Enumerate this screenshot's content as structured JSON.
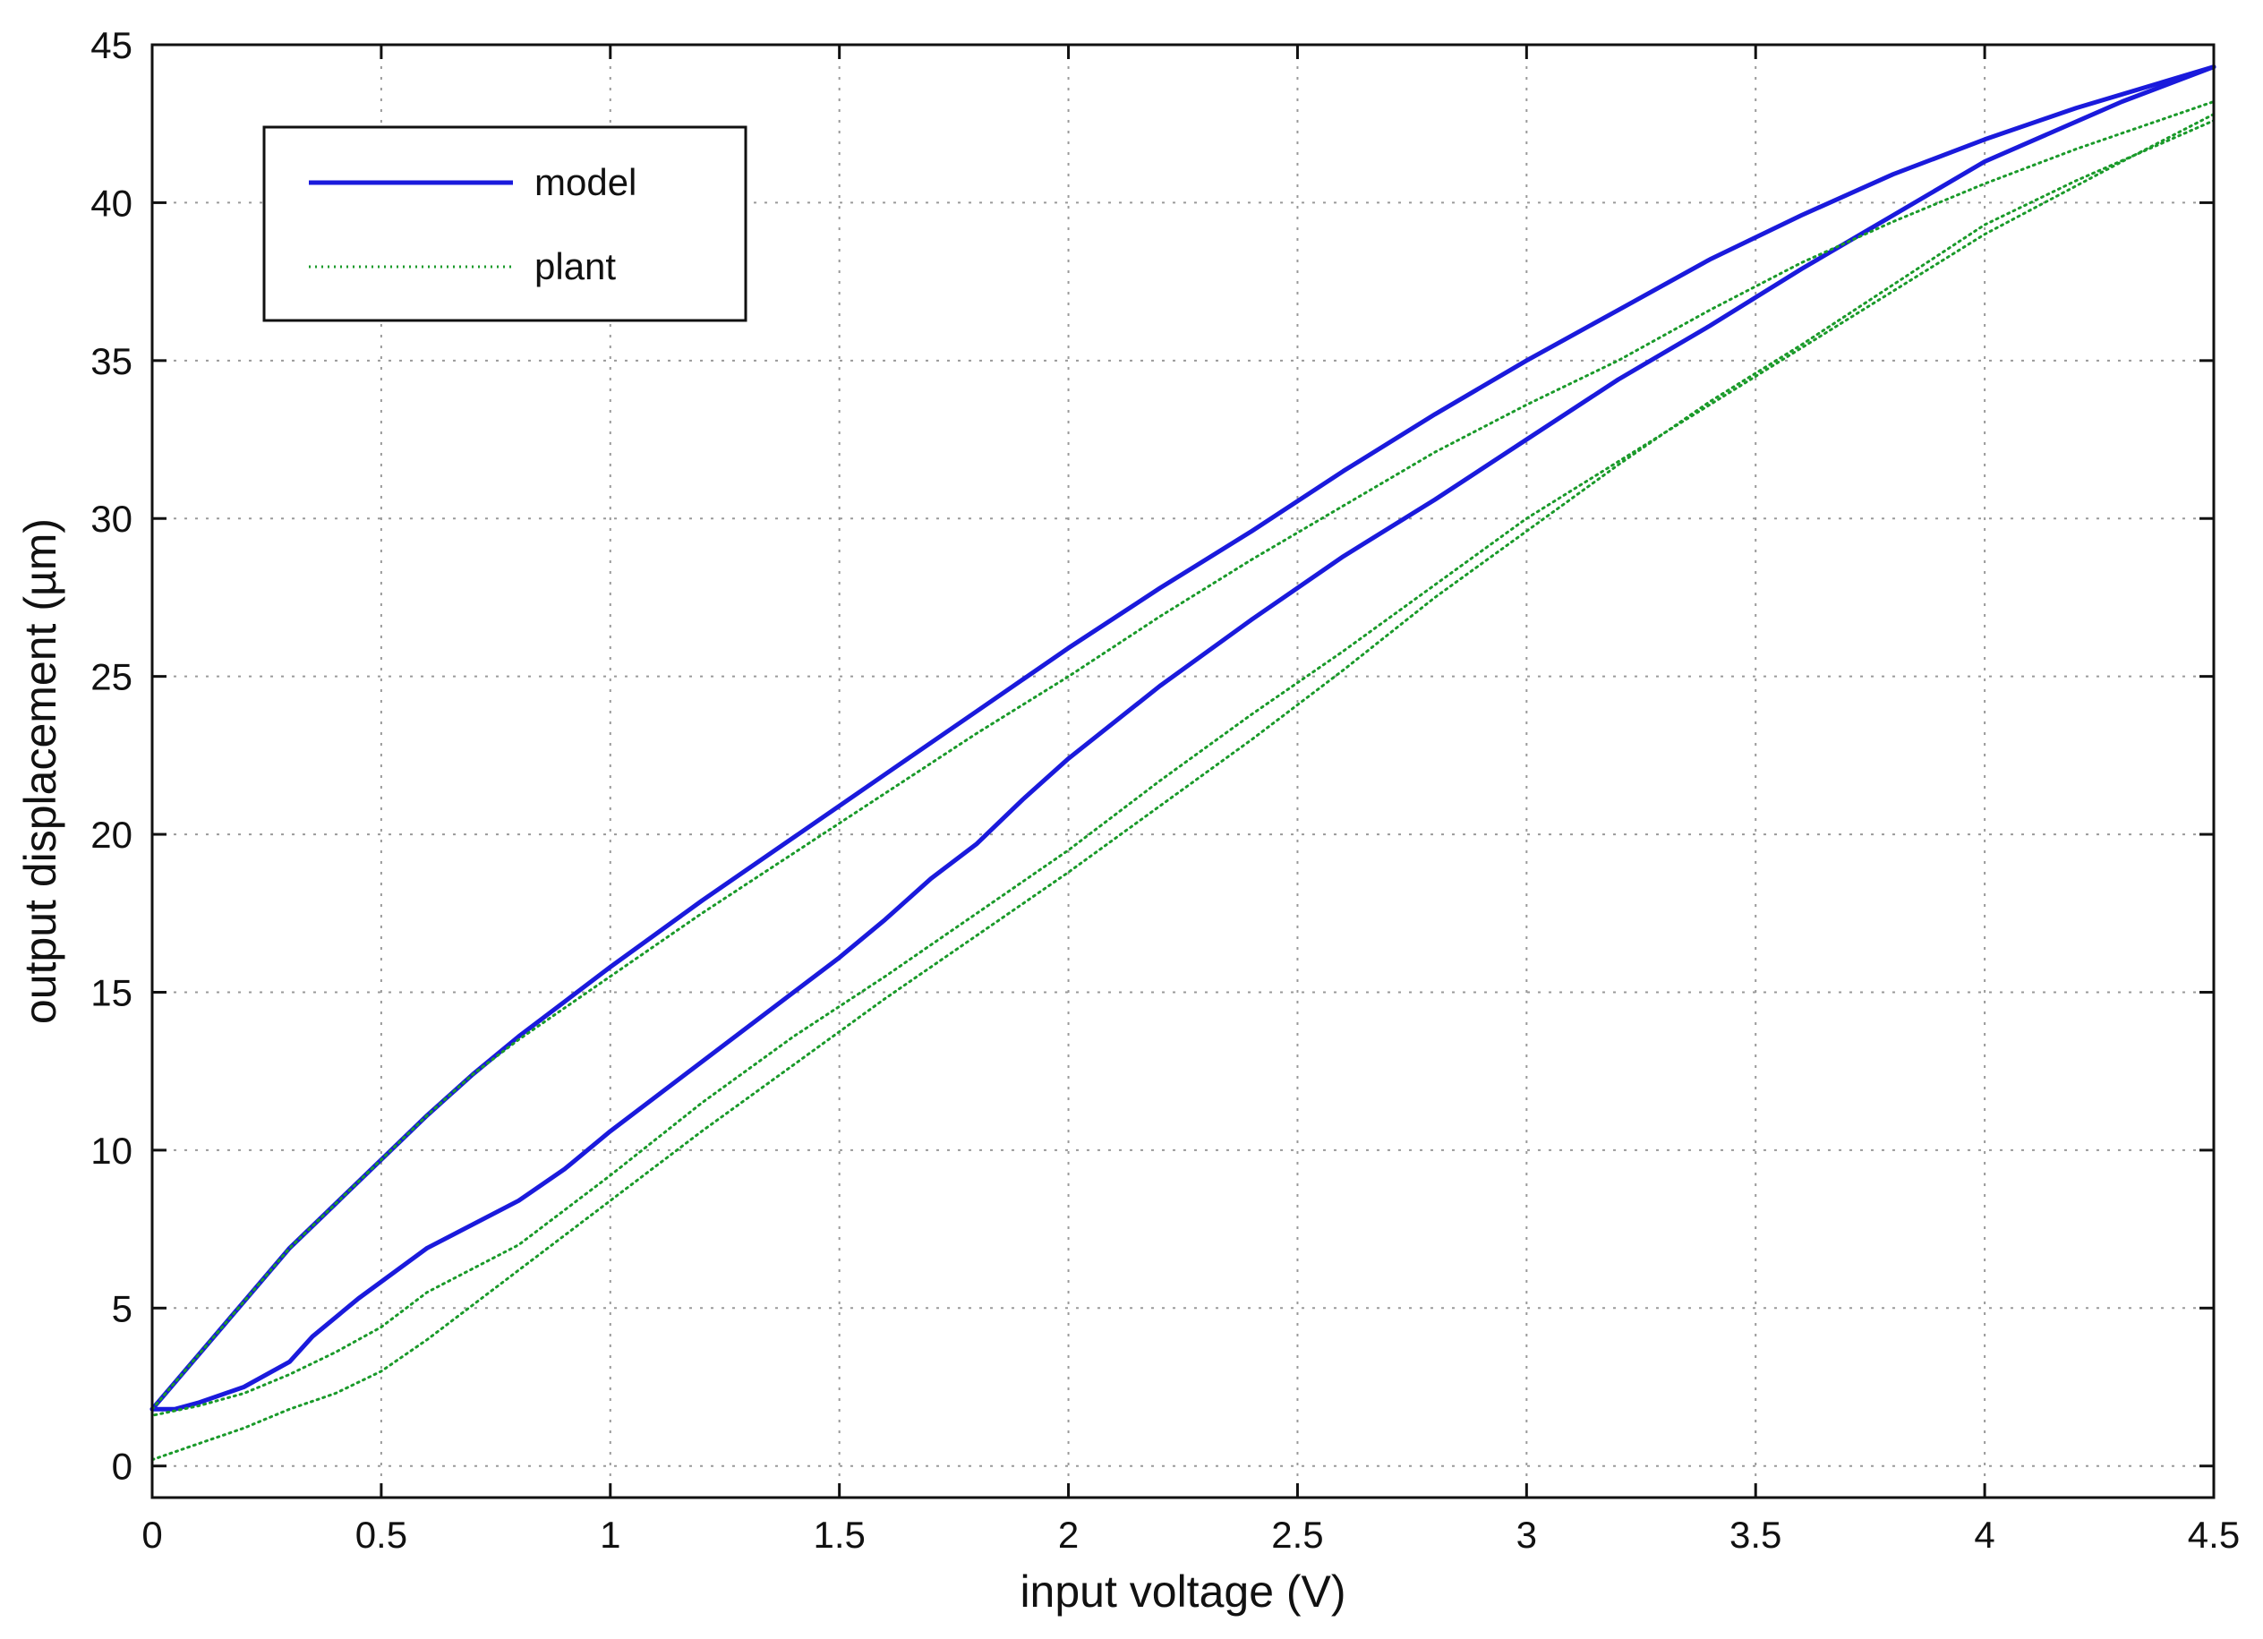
{
  "chart_data": {
    "type": "line",
    "xlabel": "input voltage (V)",
    "ylabel": "output displacement (µm)",
    "xlim": [
      0,
      4.5
    ],
    "ylim": [
      -1,
      45
    ],
    "xticks": [
      0,
      0.5,
      1,
      1.5,
      2,
      2.5,
      3,
      3.5,
      4,
      4.5
    ],
    "xtick_labels": [
      "0",
      "0.5",
      "1",
      "1.5",
      "2",
      "2.5",
      "3",
      "3.5",
      "4",
      "4.5"
    ],
    "yticks": [
      0,
      5,
      10,
      15,
      20,
      25,
      30,
      35,
      40,
      45
    ],
    "ytick_labels": [
      "0",
      "5",
      "10",
      "15",
      "20",
      "25",
      "30",
      "35",
      "40",
      "45"
    ],
    "grid": true,
    "legend": {
      "placement": "top-left",
      "entries": [
        "model",
        "plant"
      ]
    },
    "series": [
      {
        "name": "model",
        "style": "solid",
        "color": "#1a1adc",
        "branches": [
          {
            "x": [
              0,
              0.1,
              0.2,
              0.3,
              0.4,
              0.5,
              0.6,
              0.7,
              0.8,
              0.9,
              1.0,
              1.2,
              1.4,
              1.6,
              1.8,
              2.0,
              2.2,
              2.4,
              2.6,
              2.8,
              3.0,
              3.2,
              3.4,
              3.6,
              3.8,
              4.0,
              4.2,
              4.5
            ],
            "y": [
              1.8,
              3.5,
              5.2,
              6.9,
              8.3,
              9.7,
              11.1,
              12.4,
              13.6,
              14.7,
              15.8,
              17.9,
              19.9,
              21.9,
              23.9,
              25.9,
              27.8,
              29.6,
              31.5,
              33.3,
              35.0,
              36.6,
              38.2,
              39.6,
              40.9,
              42.0,
              43.0,
              44.3
            ]
          },
          {
            "x": [
              4.5,
              4.3,
              4.0,
              3.8,
              3.6,
              3.4,
              3.2,
              3.0,
              2.8,
              2.6,
              2.4,
              2.2,
              2.0,
              1.9,
              1.8,
              1.7,
              1.6,
              1.5,
              1.4,
              1.2,
              1.0,
              0.9,
              0.8,
              0.6,
              0.45,
              0.35,
              0.3,
              0.2,
              0.1,
              0.05,
              0
            ],
            "y": [
              44.3,
              43.2,
              41.3,
              39.6,
              37.9,
              36.1,
              34.4,
              32.5,
              30.6,
              28.8,
              26.8,
              24.7,
              22.4,
              21.1,
              19.7,
              18.6,
              17.3,
              16.1,
              15.0,
              12.8,
              10.6,
              9.4,
              8.4,
              6.9,
              5.3,
              4.1,
              3.3,
              2.5,
              2.0,
              1.8,
              1.8
            ]
          }
        ]
      },
      {
        "name": "plant",
        "style": "dotted",
        "color": "#1a9a2a",
        "branches": [
          {
            "x": [
              0,
              0.1,
              0.2,
              0.3,
              0.4,
              0.5,
              0.6,
              0.7,
              0.8,
              0.9,
              1.0,
              1.2,
              1.4,
              1.6,
              1.8,
              2.0,
              2.2,
              2.4,
              2.6,
              2.8,
              3.0,
              3.2,
              3.4,
              3.6,
              3.8,
              4.0,
              4.2,
              4.5
            ],
            "y": [
              1.8,
              3.5,
              5.2,
              6.9,
              8.3,
              9.7,
              11.1,
              12.4,
              13.5,
              14.5,
              15.5,
              17.5,
              19.4,
              21.3,
              23.2,
              25.0,
              26.9,
              28.7,
              30.4,
              32.1,
              33.6,
              35.0,
              36.6,
              38.1,
              39.4,
              40.6,
              41.7,
              43.2
            ]
          },
          {
            "x": [
              4.5,
              4.3,
              4.0,
              3.8,
              3.6,
              3.4,
              3.2,
              3.0,
              2.8,
              2.6,
              2.4,
              2.2,
              2.0,
              1.8,
              1.6,
              1.4,
              1.2,
              1.0,
              0.8,
              0.6,
              0.5,
              0.4,
              0.3,
              0.2,
              0.1,
              0
            ],
            "y": [
              42.8,
              41.3,
              39.0,
              37.2,
              35.4,
              33.6,
              31.8,
              30.0,
              27.9,
              25.8,
              23.8,
              21.7,
              19.5,
              17.5,
              15.5,
              13.6,
              11.5,
              9.2,
              7.0,
              5.5,
              4.4,
              3.6,
              2.9,
              2.3,
              1.9,
              1.6
            ]
          },
          {
            "x": [
              0,
              0.1,
              0.2,
              0.3,
              0.4,
              0.5,
              0.6,
              0.8,
              1.0,
              1.2,
              1.4,
              1.6,
              1.8,
              2.0,
              2.2,
              2.4,
              2.6,
              2.8,
              3.0,
              3.2,
              3.4,
              3.6,
              3.8,
              4.0,
              4.2,
              4.5
            ],
            "y": [
              0.2,
              0.7,
              1.2,
              1.8,
              2.3,
              3.0,
              4.0,
              6.2,
              8.4,
              10.6,
              12.7,
              14.8,
              16.8,
              18.8,
              20.9,
              23.0,
              25.2,
              27.5,
              29.6,
              31.7,
              33.7,
              35.5,
              37.4,
              39.3,
              40.7,
              42.6
            ]
          }
        ]
      }
    ]
  }
}
